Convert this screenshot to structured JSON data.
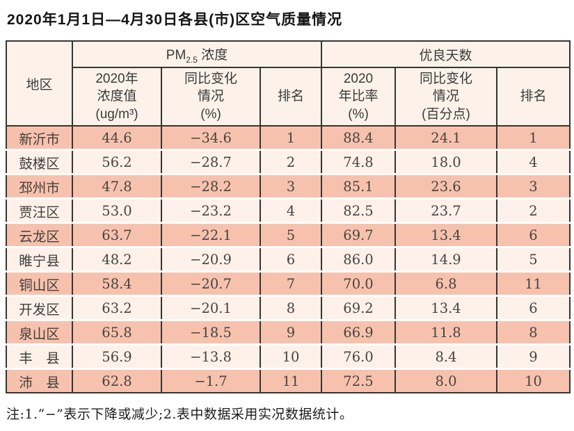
{
  "title": "2020年1月1日—4月30日各县(市)区空气质量情况",
  "table": {
    "corner_header": "地区",
    "pm_group": {
      "prefix": "PM",
      "sub": "2.5",
      "suffix": " 浓度"
    },
    "good_group_label": "优良天数",
    "subheaders": [
      "2020年\n浓度值\n(ug/m³)",
      "同比变化\n情况\n(%)",
      "排名",
      "2020\n年比率\n(%)",
      "同比变化\n情况\n(百分点)",
      "排名"
    ],
    "row_keys": [
      "region",
      "pm_value",
      "pm_change",
      "pm_rank",
      "good_ratio",
      "good_change",
      "good_rank"
    ],
    "rows": [
      {
        "region": "新沂市",
        "pm_value": "44.6",
        "pm_change": "−34.6",
        "pm_rank": "1",
        "good_ratio": "88.4",
        "good_change": "24.1",
        "good_rank": "1"
      },
      {
        "region": "鼓楼区",
        "pm_value": "56.2",
        "pm_change": "−28.7",
        "pm_rank": "2",
        "good_ratio": "74.8",
        "good_change": "18.0",
        "good_rank": "4"
      },
      {
        "region": "邳州市",
        "pm_value": "47.8",
        "pm_change": "−28.2",
        "pm_rank": "3",
        "good_ratio": "85.1",
        "good_change": "23.6",
        "good_rank": "3"
      },
      {
        "region": "贾汪区",
        "pm_value": "53.0",
        "pm_change": "−23.2",
        "pm_rank": "4",
        "good_ratio": "82.5",
        "good_change": "23.7",
        "good_rank": "2"
      },
      {
        "region": "云龙区",
        "pm_value": "63.7",
        "pm_change": "−22.1",
        "pm_rank": "5",
        "good_ratio": "69.7",
        "good_change": "13.4",
        "good_rank": "6"
      },
      {
        "region": "睢宁县",
        "pm_value": "48.2",
        "pm_change": "−20.9",
        "pm_rank": "6",
        "good_ratio": "86.0",
        "good_change": "14.9",
        "good_rank": "5"
      },
      {
        "region": "铜山区",
        "pm_value": "58.4",
        "pm_change": "−20.7",
        "pm_rank": "7",
        "good_ratio": "70.0",
        "good_change": "6.8",
        "good_rank": "11"
      },
      {
        "region": "开发区",
        "pm_value": "63.2",
        "pm_change": "−20.1",
        "pm_rank": "8",
        "good_ratio": "69.2",
        "good_change": "13.4",
        "good_rank": "6"
      },
      {
        "region": "泉山区",
        "pm_value": "65.8",
        "pm_change": "−18.5",
        "pm_rank": "9",
        "good_ratio": "66.9",
        "good_change": "11.8",
        "good_rank": "8"
      },
      {
        "region": "丰　县",
        "pm_value": "56.9",
        "pm_change": "−13.8",
        "pm_rank": "10",
        "good_ratio": "76.0",
        "good_change": "8.4",
        "good_rank": "9"
      },
      {
        "region": "沛　县",
        "pm_value": "62.8",
        "pm_change": "−1.7",
        "pm_rank": "11",
        "good_ratio": "72.5",
        "good_change": "8.0",
        "good_rank": "10"
      }
    ]
  },
  "note": "注:1.“−”表示下降或减少;2.表中数据采用实况数据统计。",
  "colors": {
    "row_odd": "#f7c2ad",
    "row_even": "#fdf1ea",
    "header_bg": "#fcf2e9",
    "border": "#353535"
  }
}
